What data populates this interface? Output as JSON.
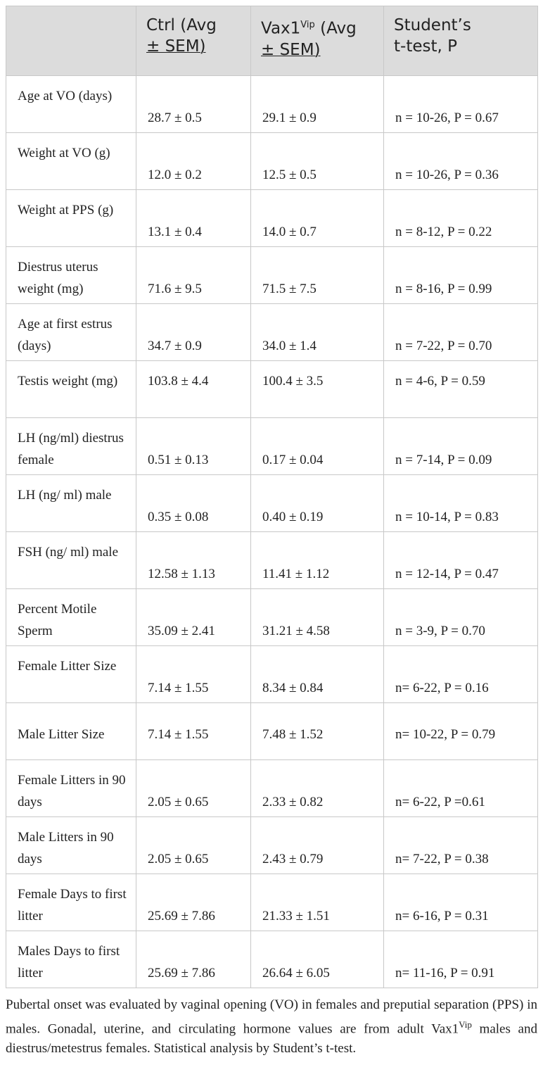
{
  "headers": {
    "col1": "",
    "col2_a": "Ctrl (Avg",
    "col2_b": "± SEM)",
    "col3_pre": "Vax1",
    "col3_sup": "Vip",
    "col3_post": " (Avg",
    "col3_b": "± SEM)",
    "col4_a": "Student’s",
    "col4_b": "t-test, P"
  },
  "rows": [
    {
      "label": "Age at VO (days)",
      "ctrl": "28.7 ± 0.5",
      "vax": "29.1 ± 0.9",
      "stat": "n = 10-26, P = 0.67"
    },
    {
      "label": "Weight at VO (g)",
      "ctrl": "12.0 ± 0.2",
      "vax": "12.5 ± 0.5",
      "stat": "n = 10-26, P = 0.36"
    },
    {
      "label": "Weight at PPS (g)",
      "ctrl": "13.1 ± 0.4",
      "vax": "14.0 ± 0.7",
      "stat": "n = 8-12, P = 0.22"
    },
    {
      "label": "Diestrus uterus weight (mg)",
      "ctrl": "71.6 ± 9.5",
      "vax": "71.5 ± 7.5",
      "stat": "n = 8-16, P = 0.99"
    },
    {
      "label": "Age at first estrus (days)",
      "ctrl": "34.7 ± 0.9",
      "vax": "34.0 ± 1.4",
      "stat": "n = 7-22, P = 0.70"
    },
    {
      "label": "Testis weight (mg)",
      "ctrl": "103.8 ± 4.4",
      "vax": "100.4 ± 3.5",
      "stat": "n = 4-6, P = 0.59"
    },
    {
      "label": "LH (ng/ml) diestrus female",
      "ctrl": "0.51 ± 0.13",
      "vax": "0.17 ± 0.04",
      "stat": "n = 7-14, P = 0.09"
    },
    {
      "label": "LH (ng/ ml) male",
      "ctrl": "0.35 ± 0.08",
      "vax": "0.40 ± 0.19",
      "stat": "n = 10-14, P = 0.83"
    },
    {
      "label": "FSH (ng/ ml) male",
      "ctrl": "12.58 ± 1.13",
      "vax": "11.41 ± 1.12",
      "stat": "n = 12-14, P = 0.47"
    },
    {
      "label": "Percent Motile Sperm",
      "ctrl": "35.09 ± 2.41",
      "vax": "31.21 ± 4.58",
      "stat": "n = 3-9, P = 0.70"
    },
    {
      "label": "Female Litter Size",
      "ctrl": "7.14 ± 1.55",
      "vax": "8.34 ± 0.84",
      "stat": "n= 6-22, P = 0.16"
    },
    {
      "label": "Male Litter Size",
      "ctrl": "7.14 ± 1.55",
      "vax": "7.48 ± 1.52",
      "stat": "n= 10-22, P = 0.79"
    },
    {
      "label": "Female Litters in 90 days",
      "ctrl": "2.05 ± 0.65",
      "vax": "2.33 ± 0.82",
      "stat": "n= 6-22, P =0.61"
    },
    {
      "label": "Male Litters in 90 days",
      "ctrl": "2.05 ± 0.65",
      "vax": "2.43 ± 0.79",
      "stat": "n= 7-22, P = 0.38"
    },
    {
      "label": "Female Days to first litter",
      "ctrl": "25.69 ± 7.86",
      "vax": "21.33 ± 1.51",
      "stat": "n= 6-16, P = 0.31"
    },
    {
      "label": "Males Days to first litter",
      "ctrl": "25.69 ± 7.86",
      "vax": "26.64 ± 6.05",
      "stat": "n= 11-16, P = 0.91"
    }
  ],
  "caption": {
    "part1": "Pubertal onset was evaluated by vaginal opening (VO) in females and preputial separation (PPS) in males. Gonadal, uterine, and circulating hormone values are from adult Vax1",
    "sup": "Vip",
    "part2": " males and diestrus/metestrus females. Statistical analysis by Student’s t-test."
  }
}
